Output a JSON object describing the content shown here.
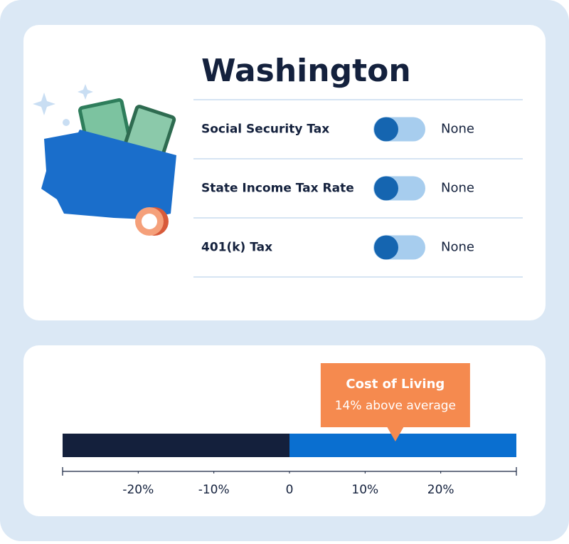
{
  "header": {
    "title": "Washington"
  },
  "taxes": [
    {
      "label": "Social Security Tax",
      "value": "None"
    },
    {
      "label": "State Income Tax Rate",
      "value": "None"
    },
    {
      "label": "401(k) Tax",
      "value": "None"
    }
  ],
  "chart_data": {
    "type": "scale",
    "xlim": [
      -30,
      30
    ],
    "xticks": [
      {
        "value": -20,
        "label": "-20%"
      },
      {
        "value": -10,
        "label": "-10%"
      },
      0,
      {
        "value": 10,
        "label": "10%"
      },
      {
        "value": 20,
        "label": "20%"
      }
    ],
    "marker": {
      "title": "Cost of Living",
      "value": 14,
      "value_label": "14% above average",
      "color": "#f58a4f"
    },
    "colors": {
      "negative": "#14203c",
      "positive": "#0a6fd0"
    }
  }
}
